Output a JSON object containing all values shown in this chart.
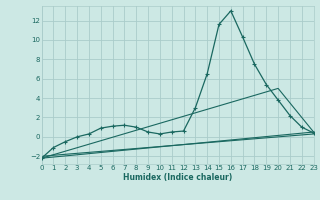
{
  "xlabel": "Humidex (Indice chaleur)",
  "bg_color": "#cce8e4",
  "grid_color": "#aaccca",
  "line_color": "#1a6860",
  "xlim": [
    0,
    23
  ],
  "ylim": [
    -2.8,
    13.5
  ],
  "xticks": [
    0,
    1,
    2,
    3,
    4,
    5,
    6,
    7,
    8,
    9,
    10,
    11,
    12,
    13,
    14,
    15,
    16,
    17,
    18,
    19,
    20,
    21,
    22,
    23
  ],
  "yticks": [
    -2,
    0,
    2,
    4,
    6,
    8,
    10,
    12
  ],
  "main_x": [
    0,
    1,
    2,
    3,
    4,
    5,
    6,
    7,
    8,
    9,
    10,
    11,
    12,
    13,
    14,
    15,
    16,
    17,
    18,
    19,
    20,
    21,
    22,
    23
  ],
  "main_y": [
    -2.2,
    -1.1,
    -0.5,
    0.0,
    0.3,
    0.9,
    1.1,
    1.2,
    1.0,
    0.5,
    0.3,
    0.5,
    0.6,
    3.0,
    6.5,
    11.6,
    13.0,
    10.3,
    7.5,
    5.4,
    3.8,
    2.2,
    1.0,
    0.4
  ],
  "line2_x": [
    0,
    20,
    23
  ],
  "line2_y": [
    -2.2,
    5.0,
    0.5
  ],
  "line3_x": [
    0,
    23
  ],
  "line3_y": [
    -2.2,
    0.5
  ],
  "line4_x": [
    0,
    23
  ],
  "line4_y": [
    -2.0,
    0.3
  ]
}
